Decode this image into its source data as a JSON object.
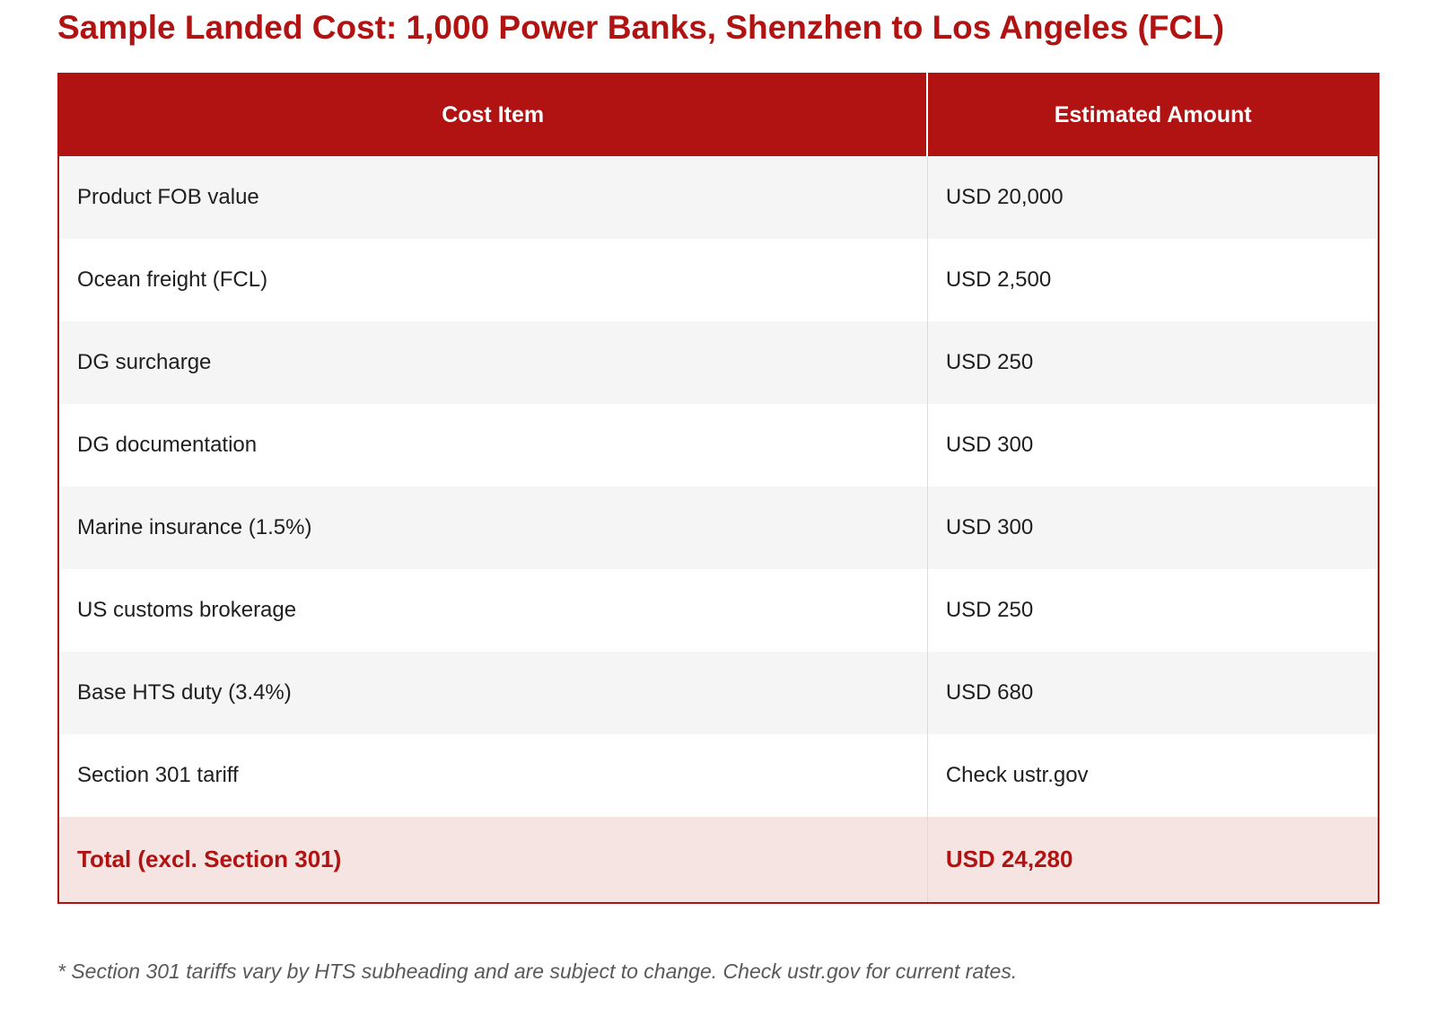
{
  "title": "Sample Landed Cost: 1,000 Power Banks, Shenzhen to Los Angeles (FCL)",
  "table": {
    "headers": {
      "cost_item": "Cost Item",
      "estimated_amount": "Estimated Amount"
    },
    "rows": [
      {
        "item": "Product FOB value",
        "amount": "USD 20,000"
      },
      {
        "item": "Ocean freight (FCL)",
        "amount": "USD 2,500"
      },
      {
        "item": "DG surcharge",
        "amount": "USD 250"
      },
      {
        "item": "DG documentation",
        "amount": "USD 300"
      },
      {
        "item": "Marine insurance (1.5%)",
        "amount": "USD 300"
      },
      {
        "item": "US customs brokerage",
        "amount": "USD 250"
      },
      {
        "item": "Base HTS duty (3.4%)",
        "amount": "USD 680"
      },
      {
        "item": "Section 301 tariff",
        "amount": "Check ustr.gov"
      }
    ],
    "total": {
      "item": "Total (excl. Section 301)",
      "amount": "USD 24,280"
    }
  },
  "footnote": "* Section 301 tariffs vary by HTS subheading and are subject to change. Check ustr.gov for current rates.",
  "colors": {
    "accent_red": "#B11212",
    "header_text": "#FFFFFF",
    "row_alt_bg": "#F5F5F5",
    "row_bg": "#FFFFFF",
    "total_row_bg": "#F5E4E2",
    "body_text": "#1F1F1F",
    "footnote_gray": "#595959",
    "divider_gray": "#DCDCDC"
  }
}
